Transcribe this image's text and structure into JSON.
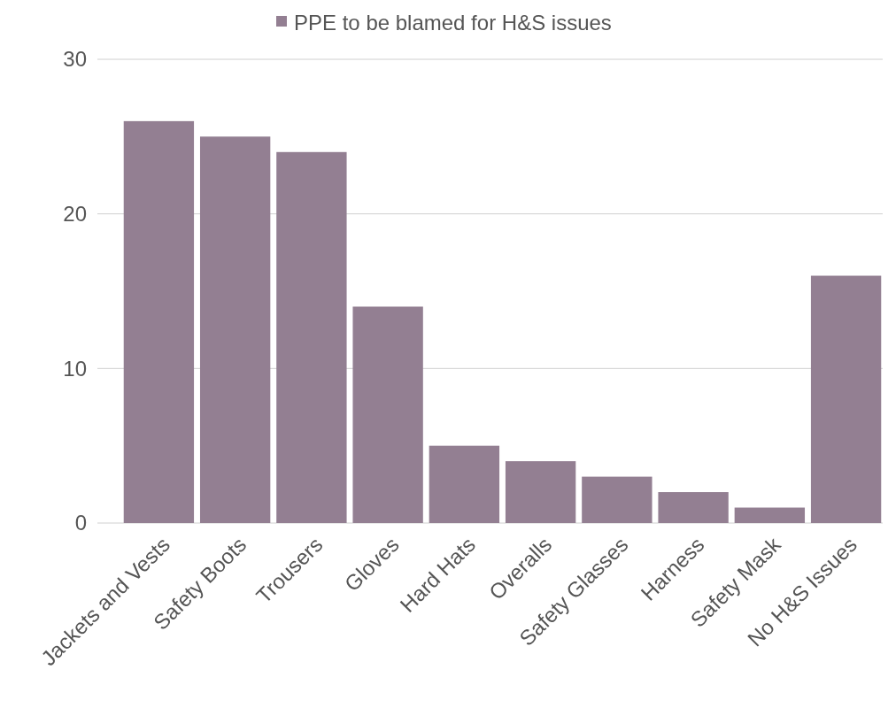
{
  "chart_data": {
    "type": "bar",
    "categories": [
      "Jackets and Vests",
      "Safety Boots",
      "Trousers",
      "Gloves",
      "Hard Hats",
      "Overalls",
      "Safety Glasses",
      "Harness",
      "Safety Mask",
      "No H&S Issues"
    ],
    "series": [
      {
        "name": "PPE to be blamed for H&S issues",
        "color": "#937f92",
        "values": [
          26,
          25,
          24,
          14,
          5,
          4,
          3,
          2,
          1,
          16
        ]
      }
    ],
    "ylim": [
      0,
      30
    ],
    "yticks": [
      0,
      10,
      20,
      30
    ],
    "grid": "y",
    "legend": "top"
  }
}
